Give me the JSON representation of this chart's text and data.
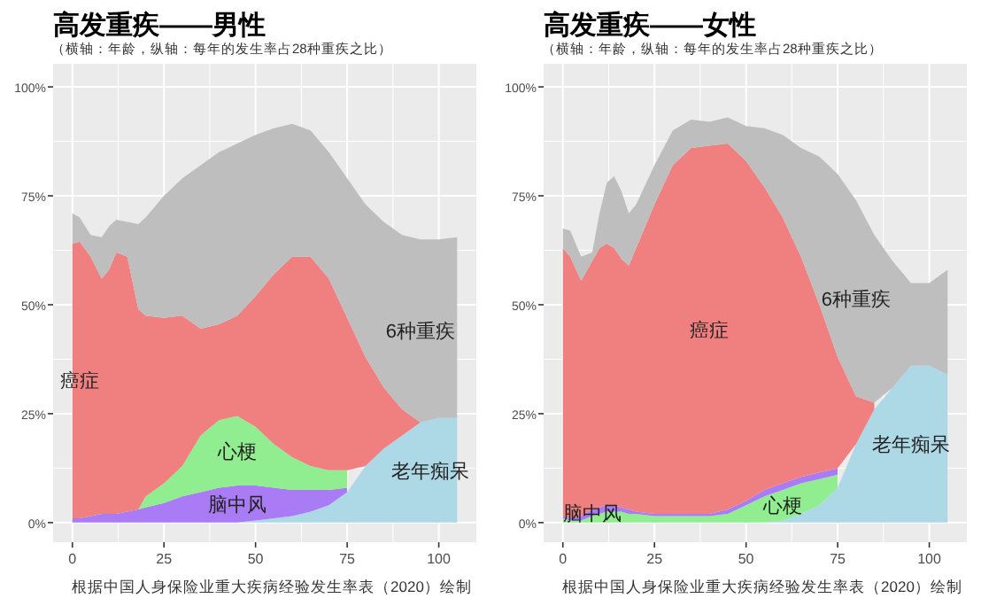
{
  "chart_data": [
    {
      "type": "area",
      "stacked": true,
      "title": "高发重疾——男性",
      "subtitle": "（横轴：年龄，纵轴：每年的发生率占28种重疾之比）",
      "x": [
        0,
        2,
        5,
        8,
        10,
        12,
        15,
        18,
        20,
        25,
        30,
        35,
        40,
        45,
        50,
        55,
        60,
        65,
        70,
        75,
        80,
        85,
        90,
        95,
        100,
        105
      ],
      "series": [
        {
          "name": "老年痴呆",
          "color": "#add8e6",
          "values": [
            0,
            0,
            0,
            0,
            0,
            0,
            0,
            0,
            0,
            0,
            0,
            0,
            0,
            0,
            0.5,
            1,
            1.5,
            2.5,
            4,
            7,
            13,
            17,
            20,
            23,
            24,
            24
          ]
        },
        {
          "name": "脑中风",
          "color": "#a97cf5",
          "values": [
            1,
            1,
            1.5,
            2,
            2,
            2,
            2.5,
            3,
            3.5,
            4.5,
            6,
            7,
            8,
            8.5,
            8,
            7,
            6,
            5,
            3.5,
            1,
            null,
            null,
            null,
            null,
            null,
            null
          ]
        },
        {
          "name": "心梗",
          "color": "#90ee90",
          "values": [
            null,
            null,
            null,
            null,
            null,
            null,
            null,
            0,
            2.5,
            4.5,
            7,
            13,
            15.5,
            16,
            13.5,
            10,
            7.5,
            5.5,
            4.5,
            4,
            null,
            null,
            null,
            null,
            null,
            null
          ]
        },
        {
          "name": "癌症",
          "color": "#f08080",
          "values": [
            63,
            63.5,
            59.5,
            54,
            56,
            60,
            58.5,
            46,
            41.5,
            38,
            34.5,
            24.5,
            22,
            23,
            30,
            39,
            46,
            48,
            44,
            35,
            25,
            14,
            6,
            0,
            null,
            null
          ]
        },
        {
          "name": "6种重疾",
          "color": "#bebebe",
          "values": [
            7,
            5.5,
            5,
            9.5,
            10,
            7.5,
            8,
            19.5,
            22.5,
            28,
            31.5,
            37.5,
            39.5,
            39.5,
            37,
            33.5,
            30.5,
            29,
            29,
            32,
            35,
            38,
            40,
            42,
            41,
            41.5
          ]
        }
      ],
      "xlim": [
        -5.25,
        110.25
      ],
      "xticks": [
        0,
        25,
        50,
        75,
        100
      ],
      "ylim": [
        -4.5,
        105.3
      ],
      "yticks": [
        {
          "value": 0,
          "label": "0%"
        },
        {
          "value": 25,
          "label": "25%"
        },
        {
          "value": 50,
          "label": "50%"
        },
        {
          "value": 75,
          "label": "75%"
        },
        {
          "value": 100,
          "label": "100%"
        }
      ],
      "grid": true,
      "annotations": [
        "根据中国人身保险业重大疾病经验发生率表（2020）绘制"
      ]
    },
    {
      "type": "area",
      "stacked": true,
      "title": "高发重疾——女性",
      "subtitle": "（横轴：年龄，纵轴：每年的发生率占28种重疾之比）",
      "x": [
        0,
        2,
        5,
        8,
        10,
        12,
        14,
        16,
        18,
        20,
        25,
        30,
        35,
        40,
        45,
        50,
        55,
        60,
        65,
        70,
        75,
        80,
        85,
        90,
        95,
        100,
        105
      ],
      "series": [
        {
          "name": "老年痴呆",
          "color": "#add8e6",
          "values": [
            0,
            0,
            0,
            0,
            0,
            0,
            0,
            0,
            0,
            0,
            0,
            0,
            0,
            0,
            0,
            0,
            0,
            0.5,
            2,
            4,
            8,
            18,
            26,
            31,
            36,
            36,
            34
          ]
        },
        {
          "name": "心梗",
          "color": "#90ee90",
          "values": [
            1,
            0.5,
            0.5,
            1.5,
            2,
            2.5,
            2.5,
            2.5,
            2,
            2,
            1.5,
            1.5,
            1.5,
            1.5,
            2,
            4,
            6,
            7,
            7,
            6,
            3,
            null,
            null,
            null,
            null,
            null,
            null
          ]
        },
        {
          "name": "脑中风",
          "color": "#a97cf5",
          "values": [
            0.5,
            0.5,
            1,
            1.5,
            1.5,
            1.5,
            1.5,
            1,
            1,
            0.5,
            0.5,
            0.5,
            0.5,
            0.5,
            1,
            1,
            1.5,
            1.5,
            1.5,
            1.5,
            1.5,
            null,
            null,
            null,
            null,
            null,
            null
          ]
        },
        {
          "name": "癌症",
          "color": "#f08080",
          "values": [
            61.5,
            60,
            54,
            57,
            59.5,
            60,
            59,
            57,
            56,
            60.5,
            71,
            80,
            84,
            84.5,
            84,
            78,
            69.5,
            61,
            50.5,
            38.5,
            25.5,
            11,
            1.5,
            null,
            null,
            null,
            null
          ]
        },
        {
          "name": "6种重疾",
          "color": "#bebebe",
          "values": [
            4.5,
            6,
            5.5,
            2,
            8,
            14,
            16.5,
            15.5,
            12,
            10,
            9,
            8,
            6.5,
            5.5,
            6,
            8,
            13.5,
            19,
            25,
            34,
            42,
            45,
            38.5,
            29,
            19,
            19,
            24
          ]
        }
      ],
      "xlim": [
        -5.25,
        110.25
      ],
      "xticks": [
        0,
        25,
        50,
        75,
        100
      ],
      "ylim": [
        -4.5,
        105.3
      ],
      "yticks": [
        {
          "value": 0,
          "label": "0%"
        },
        {
          "value": 25,
          "label": "25%"
        },
        {
          "value": 50,
          "label": "50%"
        },
        {
          "value": 75,
          "label": "75%"
        },
        {
          "value": 100,
          "label": "100%"
        }
      ],
      "grid": true,
      "annotations": [
        "根据中国人身保险业重大疾病经验发生率表（2020）绘制"
      ]
    }
  ]
}
